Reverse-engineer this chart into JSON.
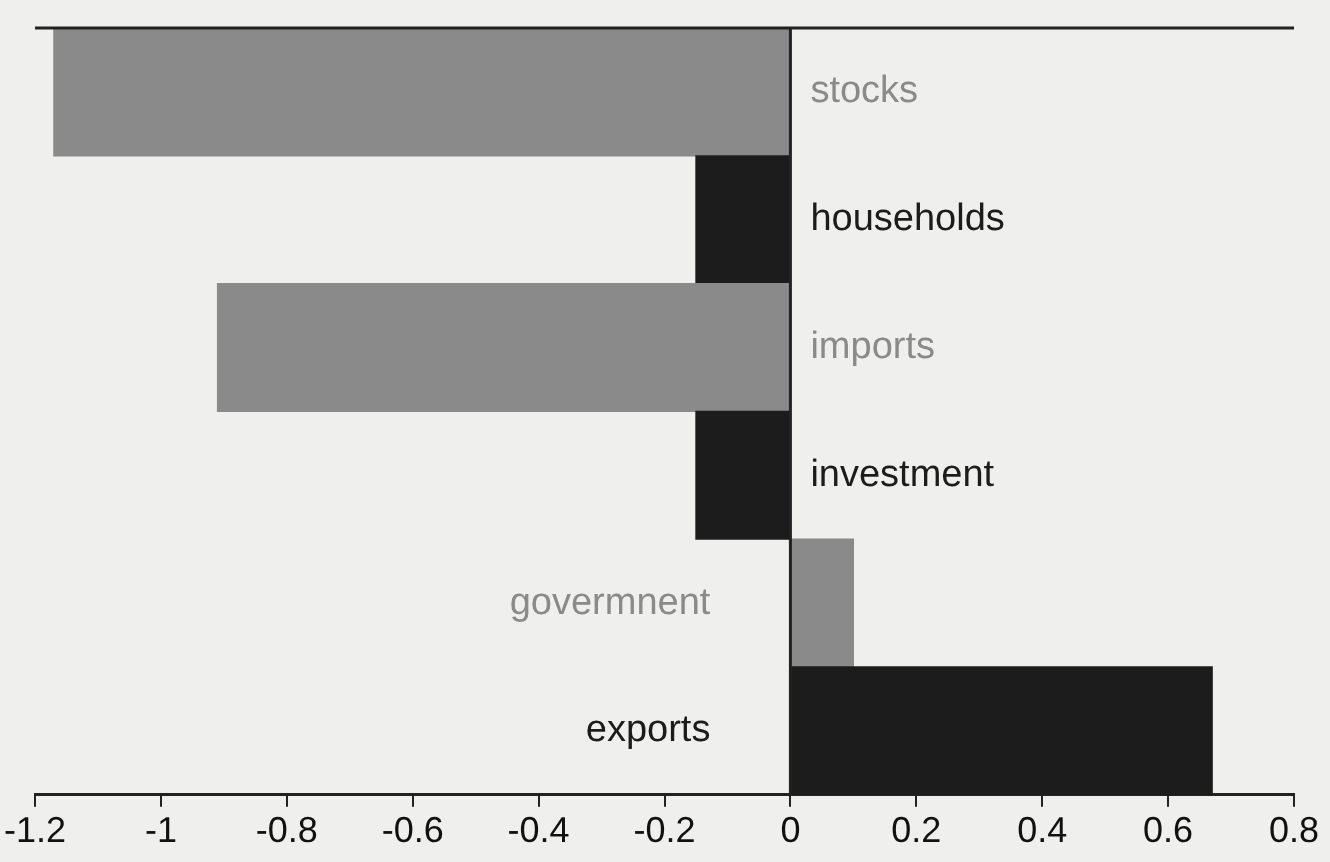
{
  "chart_data": {
    "type": "bar",
    "orientation": "horizontal",
    "categories": [
      "stocks",
      "households",
      "imports",
      "investment",
      "govermnent",
      "exports"
    ],
    "values": [
      -1.17,
      -0.15,
      -0.91,
      -0.15,
      0.1,
      0.67
    ],
    "colors": [
      "#8a8a8a",
      "#1c1c1c",
      "#8a8a8a",
      "#1c1c1c",
      "#8a8a8a",
      "#1c1c1c"
    ],
    "xlim": [
      -1.2,
      0.8
    ],
    "xticks": [
      -1.2,
      -1,
      -0.8,
      -0.6,
      -0.4,
      -0.2,
      0,
      0.2,
      0.4,
      0.6,
      0.8
    ],
    "grid": false,
    "legend": false
  }
}
